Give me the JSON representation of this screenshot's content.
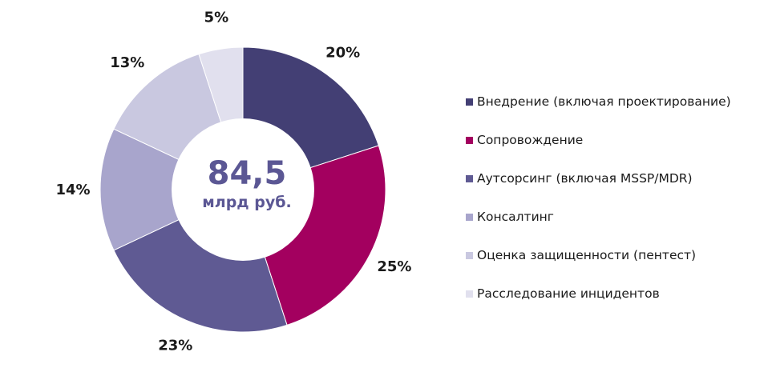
{
  "chart_data": {
    "type": "pie",
    "variant": "donut",
    "center": {
      "value": "84,5",
      "unit": "млрд руб."
    },
    "slices": [
      {
        "label": "Внедрение (включая проектирование)",
        "value": 20,
        "value_label": "20%",
        "color": "#433f74"
      },
      {
        "label": "Сопровождение",
        "value": 25,
        "value_label": "25%",
        "color": "#a3005f"
      },
      {
        "label": "Аутсорсинг (включая MSSP/MDR)",
        "value": 23,
        "value_label": "23%",
        "color": "#5f5a93"
      },
      {
        "label": "Консалтинг",
        "value": 14,
        "value_label": "14%",
        "color": "#a8a5cc"
      },
      {
        "label": "Оценка защищенности (пентест)",
        "value": 13,
        "value_label": "13%",
        "color": "#c9c8e0"
      },
      {
        "label": "Расследование инцидентов",
        "value": 5,
        "value_label": "5%",
        "color": "#e1e0ee"
      }
    ],
    "legend_position": "right"
  }
}
